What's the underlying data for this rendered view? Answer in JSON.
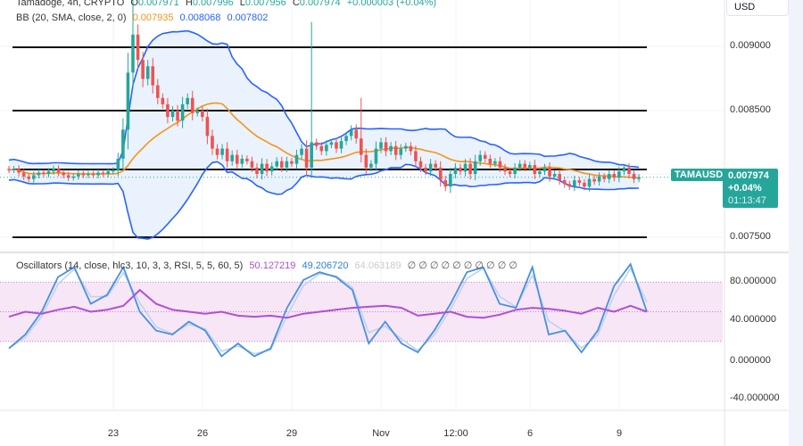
{
  "header": {
    "symbol": "Tamadoge, 4h, CRYPTO",
    "open_label": "O",
    "open": "0.007971",
    "high_label": "H",
    "high": "0.007996",
    "low_label": "L",
    "low": "0.007956",
    "close_label": "C",
    "close": "0.007974",
    "change": "+0.000003 (+0.04%)"
  },
  "bb_legend": {
    "label": "BB (20, SMA, close, 2, 0)",
    "basis": "0.007935",
    "upper": "0.008068",
    "lower": "0.007802"
  },
  "osc_legend": {
    "label": "Oscillators (14, close, hlc3, 10, 3, 3, RSI, 5, 5, 60, 5)",
    "v1": "50.127219",
    "v2": "49.206720",
    "v3": "64.063189",
    "zeros": "∅ ∅ ∅ ∅ ∅ ∅ ∅ ∅ ∅ ∅"
  },
  "currency_button": "USD",
  "symbol_tag": "TAMAUSD",
  "price_tag": {
    "price": "0.007974",
    "change": "+0.04%",
    "countdown": "01:13:47"
  },
  "colors": {
    "up": "#26a69a",
    "down": "#ef5350",
    "bb_band": "#2962ff",
    "bb_basis": "#f7931a",
    "bb_fill": "#e3effd",
    "osc_k": "#4a8fe0",
    "osc_rsi": "#b04fd6",
    "osc_fill": "#f7e6f5"
  },
  "chart_data": [
    {
      "type": "candlestick",
      "interval": "4h",
      "price_axis_ticks": [
        "0.009000",
        "0.008500",
        "0.007500"
      ],
      "ylim": [
        0.0073,
        0.0094
      ],
      "time_axis_ticks": [
        "23",
        "26",
        "29",
        "Nov",
        "12:00",
        "6",
        "9"
      ],
      "close": [
        0.00803,
        0.00804,
        0.00801,
        0.00798,
        0.00796,
        0.00799,
        0.00801,
        0.008,
        0.00802,
        0.00804,
        0.00801,
        0.00799,
        0.00797,
        0.00798,
        0.008,
        0.00799,
        0.008,
        0.00799,
        0.00801,
        0.008,
        0.00802,
        0.00803,
        0.00812,
        0.00835,
        0.0088,
        0.0091,
        0.0089,
        0.00875,
        0.00885,
        0.0087,
        0.0086,
        0.00855,
        0.00845,
        0.0085,
        0.00842,
        0.00855,
        0.0086,
        0.00848,
        0.0085,
        0.00845,
        0.0083,
        0.0082,
        0.00815,
        0.0082,
        0.0081,
        0.00815,
        0.00808,
        0.00812,
        0.0081,
        0.00805,
        0.008,
        0.00808,
        0.00802,
        0.00806,
        0.0081,
        0.00805,
        0.0081,
        0.00808,
        0.00815,
        0.0082,
        0.00805,
        0.00825,
        0.00822,
        0.00818,
        0.00823,
        0.00825,
        0.0082,
        0.00826,
        0.0083,
        0.00835,
        0.00828,
        0.00815,
        0.00805,
        0.00808,
        0.0082,
        0.00825,
        0.00818,
        0.00822,
        0.00815,
        0.0082,
        0.00822,
        0.00818,
        0.0081,
        0.00805,
        0.00802,
        0.00808,
        0.00805,
        0.00795,
        0.0079,
        0.008,
        0.00805,
        0.00802,
        0.00808,
        0.008,
        0.0081,
        0.00815,
        0.00812,
        0.00808,
        0.0081,
        0.00805,
        0.00802,
        0.008,
        0.00805,
        0.00808,
        0.00805,
        0.00807,
        0.008,
        0.00802,
        0.00805,
        0.00798,
        0.008,
        0.00795,
        0.00792,
        0.0079,
        0.00795,
        0.00793,
        0.0079,
        0.00796,
        0.00794,
        0.00798,
        0.00796,
        0.008,
        0.00797,
        0.00802,
        0.00805,
        0.008,
        0.00796,
        0.007974
      ],
      "notable_wicks": [
        [
          25,
          0.00945
        ],
        [
          61,
          0.0092
        ],
        [
          71,
          0.0086
        ]
      ],
      "indicator": "Bollinger Bands (20, SMA, close, 2)",
      "horizontal_levels": [
        0.009,
        0.0085,
        0.008035,
        0.0075
      ]
    },
    {
      "type": "line",
      "axis_ticks": [
        "80.000000",
        "40.000000",
        "0.000000",
        "-40.000000"
      ],
      "ylim": [
        -55,
        115
      ],
      "band": [
        20,
        80
      ],
      "series": [
        {
          "values": [
            13,
            27,
            50,
            85,
            95,
            58,
            67,
            95,
            50,
            31,
            27,
            40,
            31,
            5,
            18,
            5,
            13,
            54,
            82,
            90,
            85,
            72,
            18,
            40,
            18,
            9,
            31,
            58,
            90,
            95,
            58,
            54,
            95,
            27,
            31,
            9,
            31,
            76,
            98,
            50
          ]
        },
        {
          "values": [
            45,
            50,
            48,
            52,
            55,
            50,
            52,
            56,
            72,
            58,
            52,
            50,
            48,
            50,
            46,
            45,
            46,
            44,
            48,
            50,
            52,
            54,
            55,
            56,
            54,
            46,
            48,
            50,
            45,
            44,
            47,
            52,
            54,
            53,
            51,
            48,
            54,
            50,
            56,
            50
          ]
        }
      ]
    }
  ]
}
